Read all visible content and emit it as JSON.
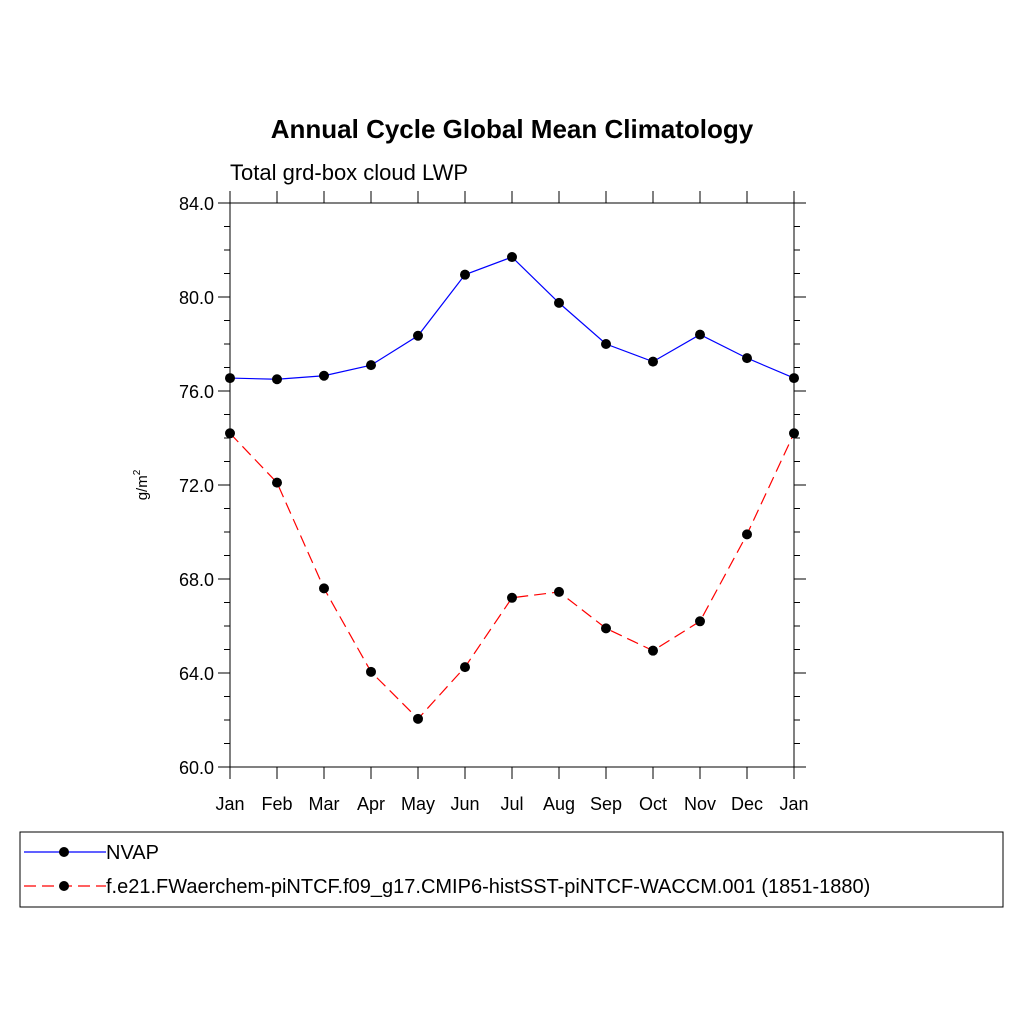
{
  "chart_data": {
    "type": "line",
    "title": "Annual Cycle Global Mean Climatology",
    "subtitle": "Total grd-box cloud LWP",
    "ylabel": "g/m",
    "ylabel_sup": "2",
    "ylim": [
      60,
      84
    ],
    "yticks": [
      "60.0",
      "64.0",
      "68.0",
      "72.0",
      "76.0",
      "80.0",
      "84.0"
    ],
    "categories": [
      "Jan",
      "Feb",
      "Mar",
      "Apr",
      "May",
      "Jun",
      "Jul",
      "Aug",
      "Sep",
      "Oct",
      "Nov",
      "Dec",
      "Jan"
    ],
    "series": [
      {
        "name": "NVAP",
        "color": "#0000ff",
        "dash": "solid",
        "values": [
          76.55,
          76.5,
          76.65,
          77.1,
          78.35,
          80.95,
          81.7,
          79.75,
          78.0,
          77.25,
          78.4,
          77.4,
          76.55
        ]
      },
      {
        "name": "f.e21.FWaerchem-piNTCF.f09_g17.CMIP6-histSST-piNTCF-WACCM.001 (1851-1880)",
        "color": "#ff0000",
        "dash": "dashed",
        "values": [
          74.2,
          72.1,
          67.6,
          64.05,
          62.05,
          64.25,
          67.2,
          67.45,
          65.9,
          64.95,
          66.2,
          69.9,
          74.2
        ]
      }
    ],
    "marker_color": "#000000",
    "grid": false,
    "legend_position": "bottom"
  }
}
